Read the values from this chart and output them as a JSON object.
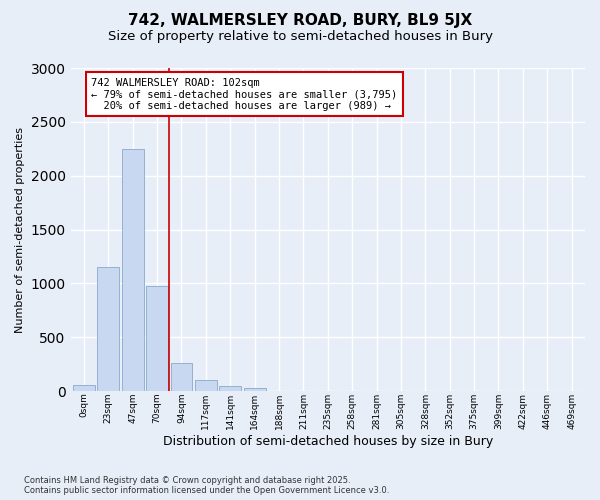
{
  "title": "742, WALMERSLEY ROAD, BURY, BL9 5JX",
  "subtitle": "Size of property relative to semi-detached houses in Bury",
  "xlabel": "Distribution of semi-detached houses by size in Bury",
  "ylabel": "Number of semi-detached properties",
  "footer_line1": "Contains HM Land Registry data © Crown copyright and database right 2025.",
  "footer_line2": "Contains public sector information licensed under the Open Government Licence v3.0.",
  "bar_labels": [
    "0sqm",
    "23sqm",
    "47sqm",
    "70sqm",
    "94sqm",
    "117sqm",
    "141sqm",
    "164sqm",
    "188sqm",
    "211sqm",
    "235sqm",
    "258sqm",
    "281sqm",
    "305sqm",
    "328sqm",
    "352sqm",
    "375sqm",
    "399sqm",
    "422sqm",
    "446sqm",
    "469sqm"
  ],
  "bar_values": [
    60,
    1150,
    2250,
    975,
    260,
    100,
    50,
    30,
    5,
    5,
    0,
    5,
    0,
    0,
    0,
    0,
    0,
    0,
    0,
    0,
    0
  ],
  "bar_color": "#c8d8f0",
  "bar_edgecolor": "#88aacc",
  "vline_pos": 3.5,
  "vline_color": "#cc0000",
  "annotation_text": "742 WALMERSLEY ROAD: 102sqm\n← 79% of semi-detached houses are smaller (3,795)\n  20% of semi-detached houses are larger (989) →",
  "annotation_color": "#cc0000",
  "ylim": [
    0,
    3000
  ],
  "yticks": [
    0,
    500,
    1000,
    1500,
    2000,
    2500,
    3000
  ],
  "background_color": "#e8eef8",
  "grid_color": "#ffffff",
  "title_fontsize": 11,
  "subtitle_fontsize": 9.5,
  "ylabel_fontsize": 8,
  "xlabel_fontsize": 9,
  "footer_fontsize": 6
}
